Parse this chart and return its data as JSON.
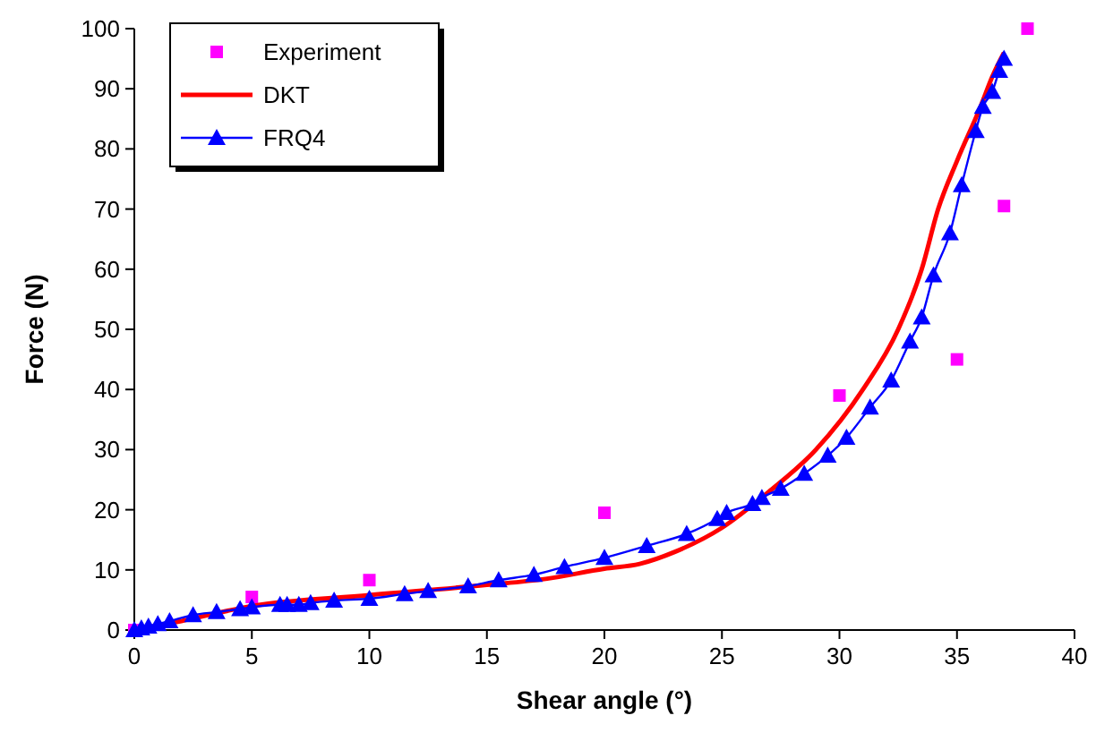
{
  "chart_data": {
    "type": "scatter",
    "xlabel": "Shear angle (°)",
    "ylabel": "Force (N)",
    "xlim": [
      0,
      40
    ],
    "xticks": [
      0,
      5,
      10,
      15,
      20,
      25,
      30,
      35,
      40
    ],
    "ylim": [
      0,
      100
    ],
    "yticks": [
      0,
      10,
      20,
      30,
      40,
      50,
      60,
      70,
      80,
      90,
      100
    ],
    "grid": false,
    "legend": "top left",
    "series": [
      {
        "name": "Experiment",
        "marker": "square",
        "color": "#ff00ff",
        "x": [
          0,
          5,
          10,
          20,
          30,
          35,
          37,
          38
        ],
        "values": [
          0,
          5.5,
          8.3,
          19.5,
          39,
          45,
          70.5,
          100
        ]
      },
      {
        "name": "DKT",
        "type": "line",
        "marker": "none",
        "color": "#ff0000",
        "x": [
          0,
          2,
          5,
          10,
          15,
          17.5,
          20,
          21.5,
          23,
          25,
          27,
          29,
          31,
          32.5,
          33.5,
          34.2,
          35,
          36,
          36.5,
          37
        ],
        "values": [
          0,
          1.5,
          4,
          5.8,
          7.5,
          8.5,
          10.2,
          11,
          13,
          17,
          23,
          30,
          40,
          50,
          60,
          70,
          78,
          87,
          92,
          96
        ]
      },
      {
        "name": "FRQ4",
        "type": "line",
        "marker": "triangle",
        "color": "#0000ff",
        "x": [
          0,
          0.3,
          0.6,
          1,
          1.5,
          2.5,
          3.5,
          4.5,
          5,
          6.2,
          6.5,
          7,
          7.5,
          8.5,
          10,
          11.5,
          12.5,
          14.2,
          15.5,
          17,
          18.3,
          20,
          21.8,
          23.5,
          24.8,
          25.2,
          26.3,
          26.7,
          27.5,
          28.5,
          29.5,
          30.3,
          31.3,
          32.2,
          33,
          33.5,
          34,
          34.7,
          35.2,
          35.8,
          36.1,
          36.5,
          36.8,
          37
        ],
        "values": [
          0,
          0.3,
          0.6,
          1,
          1.5,
          2.5,
          3,
          3.5,
          3.8,
          4.2,
          4.2,
          4.2,
          4.5,
          4.9,
          5.2,
          6,
          6.5,
          7.3,
          8.3,
          9.2,
          10.5,
          12,
          14,
          16,
          18.5,
          19.5,
          21,
          22,
          23.5,
          26,
          29,
          32,
          37,
          41.5,
          48,
          52,
          59,
          66,
          74,
          83,
          87,
          89.5,
          93,
          95
        ]
      }
    ]
  }
}
